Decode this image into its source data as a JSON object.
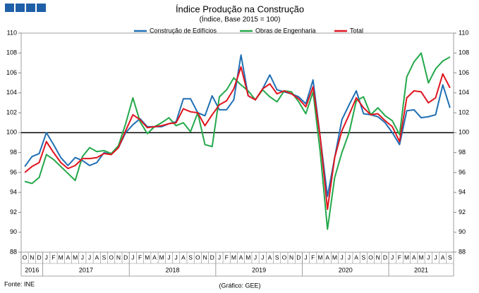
{
  "chart_data": {
    "type": "line",
    "title": "Índice Produção na Construção",
    "subtitle": "(Índice, Base 2015 = 100)",
    "source": "Fonte: INE",
    "credit": "(Gráfico: GEE)",
    "categories": [
      "O",
      "N",
      "D",
      "J",
      "F",
      "M",
      "A",
      "M",
      "J",
      "J",
      "A",
      "S",
      "O",
      "N",
      "D",
      "J",
      "F",
      "M",
      "A",
      "M",
      "J",
      "J",
      "A",
      "S",
      "O",
      "N",
      "D",
      "J",
      "F",
      "M",
      "A",
      "M",
      "J",
      "J",
      "A",
      "S",
      "O",
      "N",
      "D",
      "J",
      "F",
      "M",
      "A",
      "M",
      "J",
      "J",
      "A",
      "S",
      "O",
      "N",
      "D",
      "J",
      "F",
      "M",
      "A",
      "M",
      "J",
      "J",
      "A",
      "S"
    ],
    "year_groups": [
      {
        "label": "2016",
        "months": 3
      },
      {
        "label": "2017",
        "months": 12
      },
      {
        "label": "2018",
        "months": 12
      },
      {
        "label": "2019",
        "months": 12
      },
      {
        "label": "2020",
        "months": 12
      },
      {
        "label": "2021",
        "months": 9
      }
    ],
    "series": [
      {
        "name": "Construção de Edifícios",
        "color": "#1f6fb4",
        "values": [
          96.6,
          97.6,
          97.9,
          100.0,
          98.8,
          97.5,
          96.7,
          97.5,
          97.2,
          96.7,
          97.0,
          98.0,
          97.8,
          98.5,
          100.0,
          100.8,
          101.4,
          100.6,
          100.6,
          100.6,
          100.9,
          101.1,
          103.4,
          103.4,
          102.0,
          101.7,
          103.7,
          102.3,
          102.3,
          103.3,
          107.8,
          103.7,
          103.3,
          104.4,
          105.8,
          104.3,
          104.1,
          103.9,
          103.6,
          102.9,
          105.3,
          99.5,
          93.6,
          97.5,
          101.3,
          102.8,
          104.2,
          101.9,
          101.8,
          101.6,
          101.0,
          100.0,
          98.8,
          102.2,
          102.3,
          101.5,
          101.6,
          101.8,
          104.8,
          102.5
        ]
      },
      {
        "name": "Obras de Engenharia",
        "color": "#23a84a",
        "values": [
          95.1,
          94.9,
          95.5,
          97.8,
          97.3,
          96.6,
          95.9,
          95.2,
          97.6,
          98.5,
          98.1,
          98.2,
          97.9,
          98.7,
          100.9,
          103.5,
          101.1,
          99.9,
          100.6,
          101.0,
          101.5,
          100.7,
          101.0,
          100.1,
          102.0,
          98.8,
          98.6,
          103.6,
          104.3,
          105.5,
          104.8,
          104.2,
          103.3,
          104.3,
          103.6,
          103.1,
          104.2,
          104.1,
          103.1,
          101.9,
          104.1,
          98.0,
          90.3,
          95.5,
          98.0,
          100.0,
          103.2,
          103.6,
          101.8,
          102.5,
          101.7,
          101.2,
          99.8,
          105.6,
          107.1,
          108.0,
          105.0,
          106.4,
          107.2,
          107.6
        ]
      },
      {
        "name": "Total",
        "color": "#e0141e",
        "values": [
          96.0,
          96.6,
          97.0,
          99.1,
          98.0,
          97.0,
          96.4,
          96.7,
          97.4,
          97.4,
          97.5,
          97.9,
          97.8,
          98.5,
          100.2,
          101.8,
          101.3,
          100.5,
          100.6,
          100.7,
          100.9,
          101.0,
          102.4,
          102.1,
          102.0,
          100.7,
          101.8,
          102.8,
          103.2,
          104.4,
          106.6,
          103.7,
          103.3,
          104.4,
          104.9,
          103.9,
          104.2,
          103.9,
          103.4,
          102.6,
          104.6,
          99.5,
          92.3,
          97.5,
          100.2,
          101.8,
          103.5,
          102.5,
          101.8,
          101.9,
          101.2,
          100.6,
          99.1,
          103.5,
          104.2,
          104.1,
          103.0,
          103.5,
          105.9,
          104.5
        ]
      }
    ],
    "ylim": [
      88,
      110
    ],
    "yticks": [
      88,
      90,
      92,
      94,
      96,
      98,
      100,
      102,
      104,
      106,
      108,
      110
    ],
    "y2lim": [
      88,
      110
    ],
    "y2ticks": [
      88,
      90,
      92,
      94,
      96,
      98,
      100,
      102,
      104,
      106,
      108,
      110
    ],
    "reference_line": 100,
    "legend": "top"
  }
}
